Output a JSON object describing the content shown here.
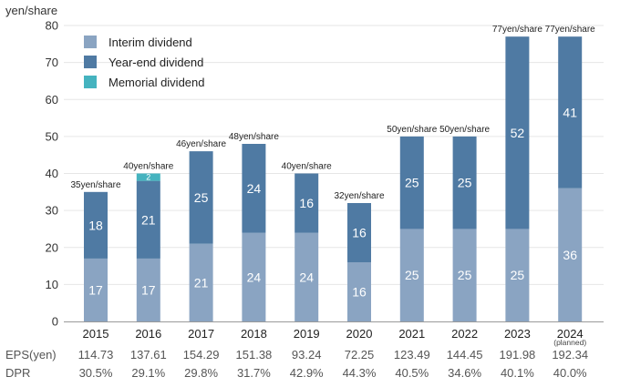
{
  "chart_data": {
    "type": "bar",
    "stacked": true,
    "y_unit_label": "yen/share",
    "ylim": [
      0,
      80
    ],
    "yticks": [
      0,
      10,
      20,
      30,
      40,
      50,
      60,
      70,
      80
    ],
    "grid": true,
    "legend_position": "top-left",
    "categories": [
      "2015",
      "2016",
      "2017",
      "2018",
      "2019",
      "2020",
      "2021",
      "2022",
      "2023",
      "2024"
    ],
    "category_notes": [
      "",
      "",
      "",
      "",
      "",
      "",
      "",
      "",
      "",
      "(planned)"
    ],
    "series": [
      {
        "name": "Interim dividend",
        "color": "#8aa4c2",
        "values": [
          17,
          17,
          21,
          24,
          24,
          16,
          25,
          25,
          25,
          36
        ]
      },
      {
        "name": "Year-end dividend",
        "color": "#4f7aa3",
        "values": [
          18,
          21,
          25,
          24,
          16,
          16,
          25,
          25,
          52,
          41
        ]
      },
      {
        "name": "Memorial dividend",
        "color": "#45b3bf",
        "values": [
          0,
          2,
          0,
          0,
          0,
          0,
          0,
          0,
          0,
          0
        ]
      }
    ],
    "total_labels": [
      "35yen/share",
      "40yen/share",
      "46yen/share",
      "48yen/share",
      "40yen/share",
      "32yen/share",
      "50yen/share",
      "50yen/share",
      "77yen/share",
      "77yen/share"
    ],
    "table_rows": [
      {
        "label": "EPS(yen)",
        "values": [
          "114.73",
          "137.61",
          "154.29",
          "151.38",
          "93.24",
          "72.25",
          "123.49",
          "144.45",
          "191.98",
          "192.34"
        ]
      },
      {
        "label": "DPR",
        "values": [
          "30.5%",
          "29.1%",
          "29.8%",
          "31.7%",
          "42.9%",
          "44.3%",
          "40.5%",
          "34.6%",
          "40.1%",
          "40.0%"
        ]
      }
    ]
  }
}
